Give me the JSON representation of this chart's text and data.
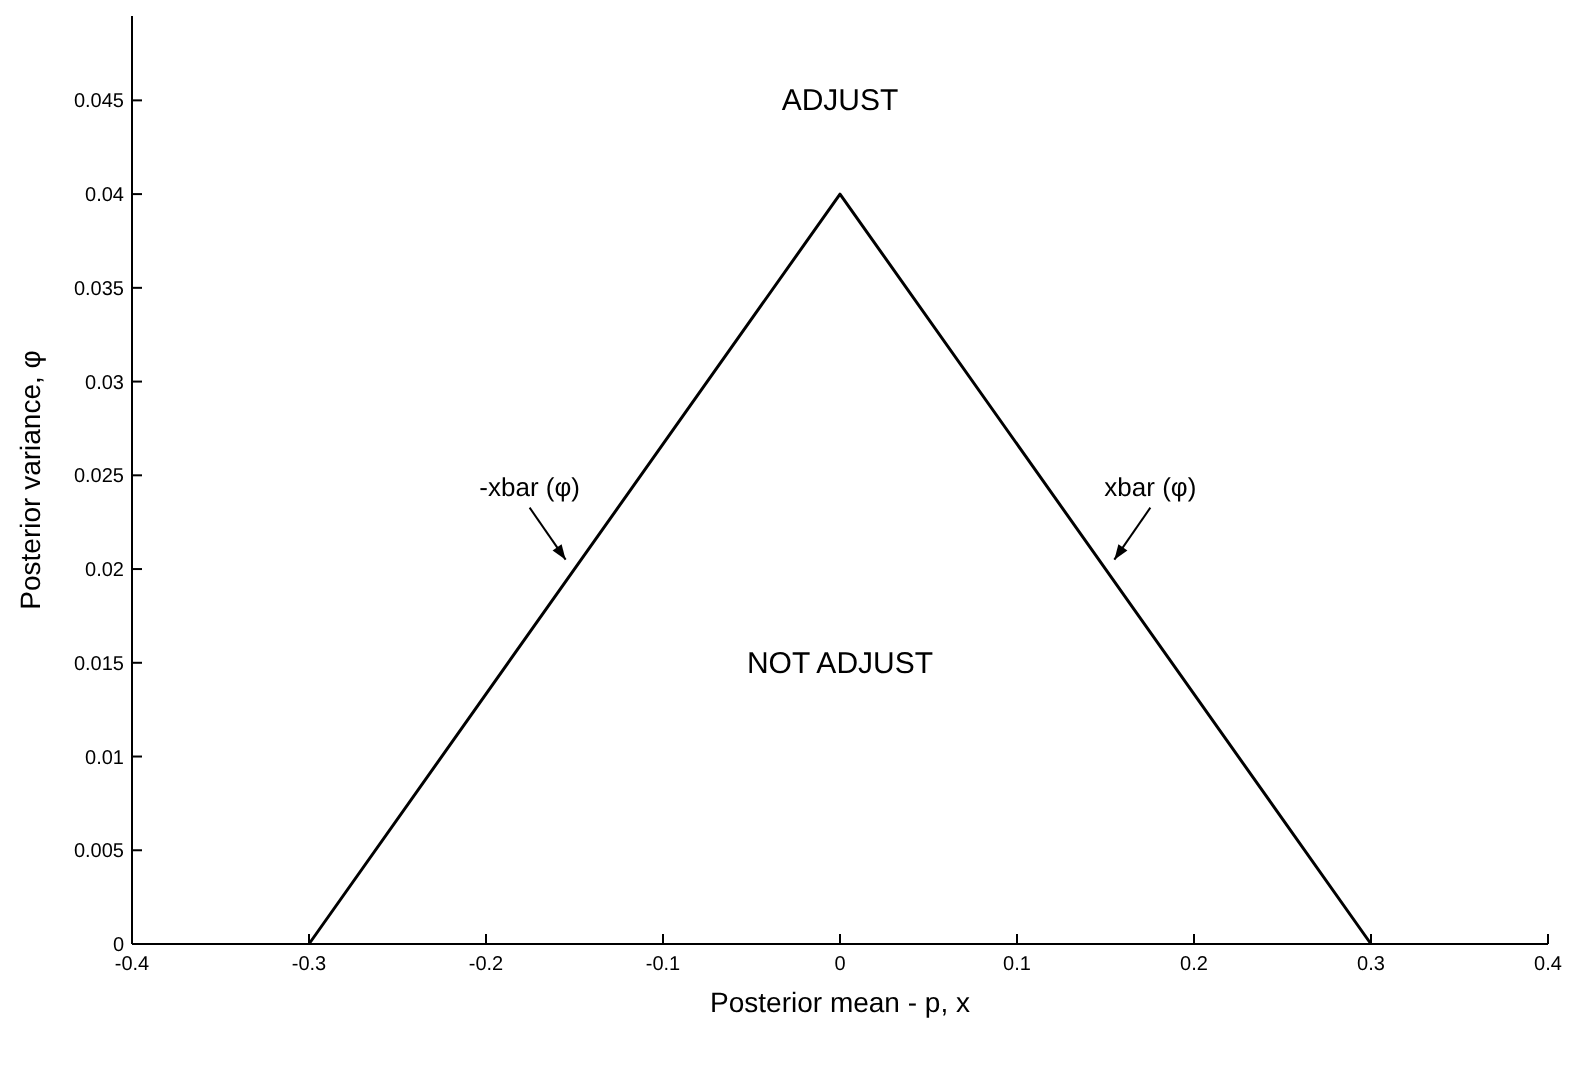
{
  "chart_data": {
    "type": "line",
    "xlabel": "Posterior mean - p, x",
    "ylabel": "Posterior variance, φ",
    "x": [
      -0.3,
      0,
      0.3
    ],
    "series": [
      {
        "color": "#000000",
        "values": [
          0,
          0.04,
          0
        ]
      }
    ],
    "xlim": [
      -0.4,
      0.4
    ],
    "xticks": [
      -0.4,
      -0.3,
      -0.2,
      -0.1,
      0,
      0.1,
      0.2,
      0.3,
      0.4
    ],
    "ylim": [
      0,
      0.0495
    ],
    "yticks": [
      0,
      0.005,
      0.01,
      0.015,
      0.02,
      0.025,
      0.03,
      0.035,
      0.04,
      0.045
    ],
    "annotations": [
      "ADJUST",
      "NOT ADJUST",
      "-xbar (φ)",
      "xbar (φ)"
    ],
    "grid": false,
    "marker": "none",
    "line_style": "solid"
  }
}
